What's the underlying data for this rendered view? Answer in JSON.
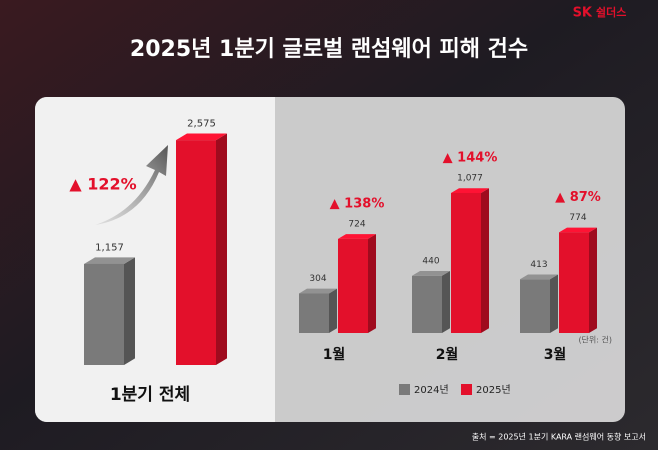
{
  "logo": {
    "brand": "SK",
    "name": "쉴더스"
  },
  "title": "2025년 1분기 글로벌 랜섬웨어 피해 건수",
  "unit": "(단위: 건)",
  "source": "출처 = 2025년 1분기 KARA 랜섬웨어 동향 보고서",
  "chart_data": [
    {
      "type": "bar",
      "categories": [
        "1분기 전체"
      ],
      "series": [
        {
          "name": "2024년",
          "color": "#7a7a7a",
          "values": [
            1157
          ],
          "value_labels": [
            "1,157"
          ]
        },
        {
          "name": "2025년",
          "color": "#e3102b",
          "values": [
            2575
          ],
          "value_labels": [
            "2,575"
          ]
        }
      ],
      "change_labels": [
        "▲ 122%"
      ],
      "ylim": [
        0,
        3000
      ]
    },
    {
      "type": "bar",
      "categories": [
        "1월",
        "2월",
        "3월"
      ],
      "series": [
        {
          "name": "2024년",
          "color": "#7a7a7a",
          "values": [
            304,
            440,
            413
          ]
        },
        {
          "name": "2025년",
          "color": "#e3102b",
          "values": [
            724,
            1077,
            774
          ],
          "value_labels": [
            "724",
            "1,077",
            "774"
          ]
        }
      ],
      "change_labels": [
        "▲ 138%",
        "▲ 144%",
        "▲ 87%"
      ],
      "ylim": [
        0,
        1200
      ],
      "legend": "bottom"
    }
  ]
}
